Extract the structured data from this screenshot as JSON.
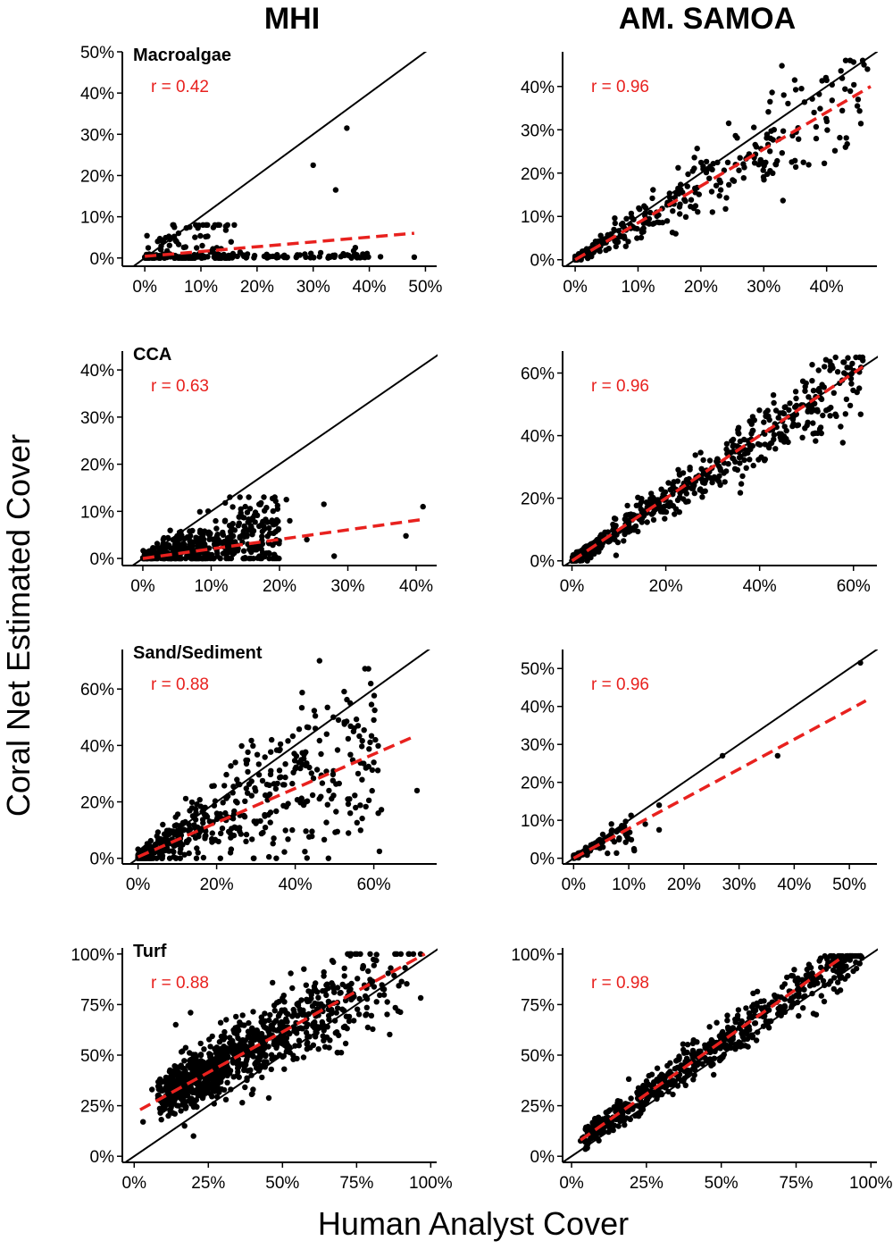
{
  "figure": {
    "column_titles": [
      "MHI",
      "AM. SAMOA"
    ],
    "xlabel": "Human Analyst Cover",
    "ylabel": "Coral Net Estimated Cover",
    "colors": {
      "points": "#000000",
      "identity_line": "#000000",
      "fit_line": "#e8211e",
      "r_label": "#e8211e"
    }
  },
  "chart_data": [
    {
      "id": "mhi-macroalgae",
      "type": "scatter",
      "region": "MHI",
      "title": "Macroalgae",
      "r_text": "r = 0.42",
      "xlim": [
        -4,
        52
      ],
      "ylim": [
        -2,
        50
      ],
      "xticks": [
        0,
        10,
        20,
        30,
        40,
        50
      ],
      "xtick_labels": [
        "0%",
        "10%",
        "20%",
        "30%",
        "40%",
        "50%"
      ],
      "yticks": [
        0,
        10,
        20,
        30,
        40,
        50
      ],
      "ytick_labels": [
        "0%",
        "10%",
        "20%",
        "30%",
        "40%",
        "50%"
      ],
      "fit": {
        "x": [
          0,
          48
        ],
        "y": [
          0.4,
          6
        ]
      },
      "outliers": [
        [
          36,
          31.5
        ],
        [
          30,
          22.5
        ],
        [
          34,
          16.5
        ],
        [
          37.5,
          2.5
        ],
        [
          48,
          0.2
        ],
        [
          42,
          0.3
        ],
        [
          33,
          0.2
        ],
        [
          27,
          0.3
        ],
        [
          22,
          0.2
        ],
        [
          18,
          0.5
        ],
        [
          8,
          7.5
        ],
        [
          12.5,
          8
        ],
        [
          6,
          6
        ]
      ],
      "sim": {
        "n": 260,
        "seed": 11,
        "xmax": 16,
        "xpow": 1.3,
        "mode": "zero",
        "slope": 0.35,
        "sd": 1.6,
        "sdp": 0.4,
        "ymin": 0,
        "ymax": 8,
        "tail": 0.25,
        "tailMax": 40
      }
    },
    {
      "id": "sam-macroalgae",
      "type": "scatter",
      "region": "AM. SAMOA",
      "title": "",
      "r_text": "r = 0.96",
      "xlim": [
        -2,
        48
      ],
      "ylim": [
        -1.5,
        48
      ],
      "xticks": [
        0,
        10,
        20,
        30,
        40
      ],
      "xtick_labels": [
        "0%",
        "10%",
        "20%",
        "30%",
        "40%"
      ],
      "yticks": [
        0,
        10,
        20,
        30,
        40
      ],
      "ytick_labels": [
        "0%",
        "10%",
        "20%",
        "30%",
        "40%"
      ],
      "fit": {
        "x": [
          0,
          47
        ],
        "y": [
          0,
          40
        ]
      },
      "outliers": [
        [
          46.5,
          44
        ],
        [
          43,
          26
        ],
        [
          36,
          39.5
        ],
        [
          31,
          36.5
        ],
        [
          45,
          37
        ],
        [
          16,
          6
        ],
        [
          38,
          34
        ]
      ],
      "sim": {
        "n": 300,
        "seed": 21,
        "xmax": 46,
        "xpow": 1.7,
        "slope": 0.88,
        "sd": 0.4,
        "sdp": 0.18,
        "ymin": 0,
        "ymax": 46
      }
    },
    {
      "id": "mhi-cca",
      "type": "scatter",
      "region": "MHI",
      "title": "CCA",
      "r_text": "r = 0.63",
      "xlim": [
        -3,
        43
      ],
      "ylim": [
        -1.5,
        44
      ],
      "xticks": [
        0,
        10,
        20,
        30,
        40
      ],
      "xtick_labels": [
        "0%",
        "10%",
        "20%",
        "30%",
        "40%"
      ],
      "yticks": [
        0,
        10,
        20,
        30,
        40
      ],
      "ytick_labels": [
        "0%",
        "10%",
        "20%",
        "30%",
        "40%"
      ],
      "fit": {
        "x": [
          0,
          41
        ],
        "y": [
          0,
          8.3
        ]
      },
      "outliers": [
        [
          41,
          11
        ],
        [
          38.5,
          4.8
        ],
        [
          28,
          0.5
        ],
        [
          26.5,
          11.5
        ],
        [
          21,
          12.5
        ],
        [
          15.5,
          13
        ],
        [
          24,
          4
        ],
        [
          21.5,
          8
        ],
        [
          15,
          11
        ]
      ],
      "sim": {
        "n": 430,
        "seed": 31,
        "xmax": 20,
        "xpow": 1.15,
        "slope": 0.3,
        "sd": 0.9,
        "sdp": 0.2,
        "ymin": 0,
        "ymax": 13
      }
    },
    {
      "id": "sam-cca",
      "type": "scatter",
      "region": "AM. SAMOA",
      "title": "",
      "r_text": "r = 0.96",
      "xlim": [
        -2,
        65
      ],
      "ylim": [
        -1.5,
        67
      ],
      "xticks": [
        0,
        20,
        40,
        60
      ],
      "xtick_labels": [
        "0%",
        "20%",
        "40%",
        "60%"
      ],
      "yticks": [
        0,
        20,
        40,
        60
      ],
      "ytick_labels": [
        "0%",
        "20%",
        "40%",
        "60%"
      ],
      "fit": {
        "x": [
          0,
          62
        ],
        "y": [
          0,
          62
        ]
      },
      "outliers": [
        [
          62,
          64
        ],
        [
          58,
          60
        ],
        [
          47,
          43
        ],
        [
          53,
          52
        ]
      ],
      "sim": {
        "n": 520,
        "seed": 41,
        "xmax": 62,
        "xpow": 1.3,
        "slope": 0.98,
        "sd": 1,
        "sdp": 0.11,
        "ymin": 0,
        "ymax": 65
      }
    },
    {
      "id": "mhi-sand",
      "type": "scatter",
      "region": "MHI",
      "title": "Sand/Sediment",
      "r_text": "r = 0.88",
      "xlim": [
        -4,
        76
      ],
      "ylim": [
        -2,
        74
      ],
      "xticks": [
        0,
        20,
        40,
        60
      ],
      "xtick_labels": [
        "0%",
        "20%",
        "40%",
        "60%"
      ],
      "yticks": [
        0,
        20,
        40,
        60
      ],
      "ytick_labels": [
        "0%",
        "20%",
        "40%",
        "60%"
      ],
      "fit": {
        "x": [
          0,
          70
        ],
        "y": [
          0.5,
          43
        ]
      },
      "outliers": [
        [
          71,
          24
        ],
        [
          60,
          49
        ],
        [
          56,
          47
        ],
        [
          51,
          49
        ],
        [
          54,
          16
        ],
        [
          58,
          32
        ],
        [
          34,
          42
        ],
        [
          48,
          44
        ],
        [
          56,
          30
        ],
        [
          60,
          34
        ]
      ],
      "sim": {
        "n": 520,
        "seed": 51,
        "xmax": 62,
        "xpow": 1.9,
        "slope": 0.68,
        "sd": 1.2,
        "sdp": 0.3,
        "ymin": 0,
        "ymax": 70
      }
    },
    {
      "id": "sam-sand",
      "type": "scatter",
      "region": "AM. SAMOA",
      "title": "",
      "r_text": "r = 0.96",
      "xlim": [
        -2,
        55
      ],
      "ylim": [
        -1.5,
        55
      ],
      "xticks": [
        0,
        10,
        20,
        30,
        40,
        50
      ],
      "xtick_labels": [
        "0%",
        "10%",
        "20%",
        "30%",
        "40%",
        "50%"
      ],
      "yticks": [
        0,
        10,
        20,
        30,
        40,
        50
      ],
      "ytick_labels": [
        "0%",
        "10%",
        "20%",
        "30%",
        "40%",
        "50%"
      ],
      "fit": {
        "x": [
          0,
          53
        ],
        "y": [
          0,
          41.5
        ]
      },
      "outliers": [
        [
          52,
          51.5
        ],
        [
          27,
          27
        ],
        [
          37,
          27
        ],
        [
          15.5,
          14
        ],
        [
          15.5,
          7.5
        ],
        [
          13,
          9
        ],
        [
          11,
          2
        ]
      ],
      "sim": {
        "n": 80,
        "seed": 61,
        "xmax": 11,
        "xpow": 1.5,
        "slope": 0.85,
        "sd": 0.4,
        "sdp": 0.2,
        "ymin": 0,
        "ymax": 20
      }
    },
    {
      "id": "mhi-turf",
      "type": "scatter",
      "region": "MHI",
      "title": "Turf",
      "r_text": "r = 0.88",
      "xlim": [
        -4,
        102
      ],
      "ylim": [
        -3,
        103
      ],
      "xticks": [
        0,
        25,
        50,
        75,
        100
      ],
      "xtick_labels": [
        "0%",
        "25%",
        "50%",
        "75%",
        "100%"
      ],
      "yticks": [
        0,
        25,
        50,
        75,
        100
      ],
      "ytick_labels": [
        "0%",
        "25%",
        "50%",
        "75%",
        "100%"
      ],
      "fit": {
        "x": [
          2,
          98
        ],
        "y": [
          23,
          100
        ]
      },
      "outliers": [
        [
          3,
          17
        ],
        [
          8,
          30
        ],
        [
          14,
          65
        ],
        [
          19,
          71
        ],
        [
          17,
          15
        ],
        [
          20,
          10
        ],
        [
          13,
          42
        ],
        [
          6,
          33
        ]
      ],
      "sim": {
        "n": 1000,
        "seed": 71,
        "xmin": 8,
        "xmax": 99,
        "xpow": 0.45,
        "rev": true,
        "intercept": 22,
        "slope": 0.8,
        "sd": 4,
        "sdp": 0.12,
        "ymin": 5,
        "ymax": 100
      }
    },
    {
      "id": "sam-turf",
      "type": "scatter",
      "region": "AM. SAMOA",
      "title": "",
      "r_text": "r = 0.98",
      "xlim": [
        -3,
        102
      ],
      "ylim": [
        -3,
        103
      ],
      "xticks": [
        0,
        25,
        50,
        75,
        100
      ],
      "xtick_labels": [
        "0%",
        "25%",
        "50%",
        "75%",
        "100%"
      ],
      "yticks": [
        0,
        25,
        50,
        75,
        100
      ],
      "ytick_labels": [
        "0%",
        "25%",
        "50%",
        "75%",
        "100%"
      ],
      "fit": {
        "x": [
          3,
          90
        ],
        "y": [
          8,
          98
        ]
      },
      "outliers": [
        [
          97,
          98
        ],
        [
          93,
          97
        ],
        [
          87,
          96
        ]
      ],
      "sim": {
        "n": 620,
        "seed": 81,
        "xmin": 3,
        "xmax": 97,
        "xpow": 1.1,
        "intercept": 5,
        "slope": 1.02,
        "sd": 3,
        "sdp": 0.04,
        "ymin": 0,
        "ymax": 99
      }
    }
  ]
}
